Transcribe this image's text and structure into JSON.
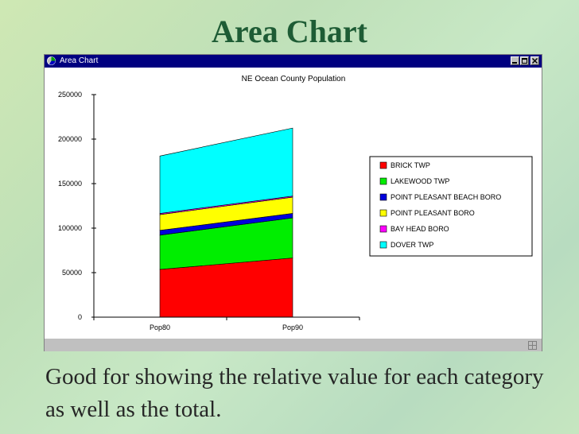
{
  "slide": {
    "title": "Area Chart",
    "caption": "Good for showing the relative value for each category as well as the total."
  },
  "window": {
    "title": "Area Chart",
    "app_icon": "chart-app-icon",
    "titlebar_color": "#000080"
  },
  "chart_data": {
    "type": "area",
    "stacked": true,
    "title": "NE Ocean County Population",
    "categories": [
      "Pop80",
      "Pop90"
    ],
    "ylim": [
      0,
      250000
    ],
    "yticks": [
      "250000",
      "200000",
      "150000",
      "100000",
      "50000",
      "0"
    ],
    "legend_position": "right",
    "grid": false,
    "series": [
      {
        "name": "BRICK TWP",
        "color": "#ff0000",
        "values": [
          53600,
          66500
        ]
      },
      {
        "name": "LAKEWOOD TWP",
        "color": "#00ee00",
        "values": [
          38500,
          45000
        ]
      },
      {
        "name": "POINT PLEASANT BEACH BORO",
        "color": "#0000dd",
        "values": [
          5400,
          5100
        ]
      },
      {
        "name": "POINT PLEASANT BORO",
        "color": "#ffff00",
        "values": [
          17700,
          18200
        ]
      },
      {
        "name": "BAY HEAD BORO",
        "color": "#ff00ff",
        "values": [
          1300,
          1200
        ]
      },
      {
        "name": "DOVER TWP",
        "color": "#00ffff",
        "values": [
          64500,
          76400
        ]
      }
    ]
  }
}
